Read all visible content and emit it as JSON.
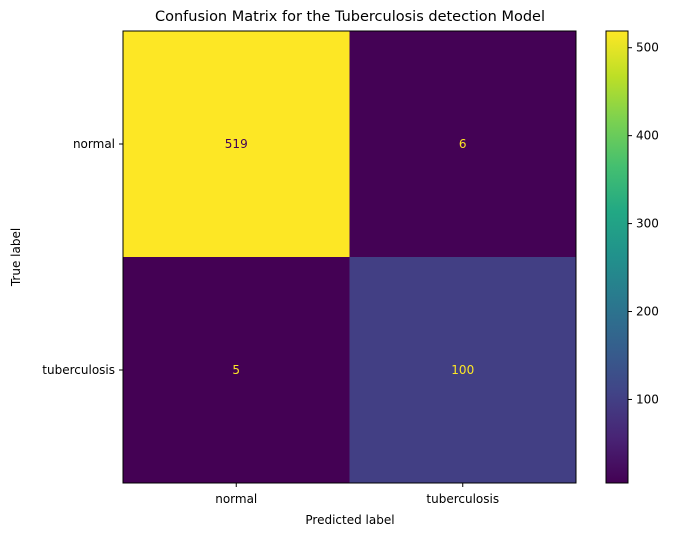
{
  "chart_data": {
    "type": "heatmap",
    "title": "Confusion Matrix for the Tuberculosis detection Model",
    "xlabel": "Predicted label",
    "ylabel": "True label",
    "x_categories": [
      "normal",
      "tuberculosis"
    ],
    "y_categories": [
      "normal",
      "tuberculosis"
    ],
    "values": [
      [
        519,
        6
      ],
      [
        5,
        100
      ]
    ],
    "colormap": "viridis",
    "colorbar": {
      "ticks": [
        100,
        200,
        300,
        400,
        500
      ],
      "range": [
        5,
        519
      ]
    },
    "cell_text_colors": {
      "on_light": "#440154",
      "on_dark": "#fde725"
    }
  }
}
